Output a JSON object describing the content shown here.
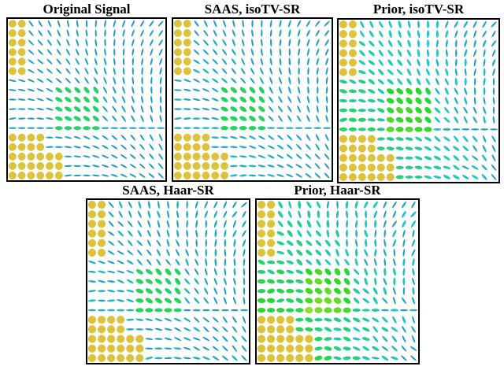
{
  "panels": [
    {
      "title": "Original Signal"
    },
    {
      "title": "SAAS, isoTV-SR"
    },
    {
      "title": "Prior, isoTV-SR"
    },
    {
      "title": "SAAS, Haar-SR"
    },
    {
      "title": "Prior, Haar-SR"
    }
  ]
}
